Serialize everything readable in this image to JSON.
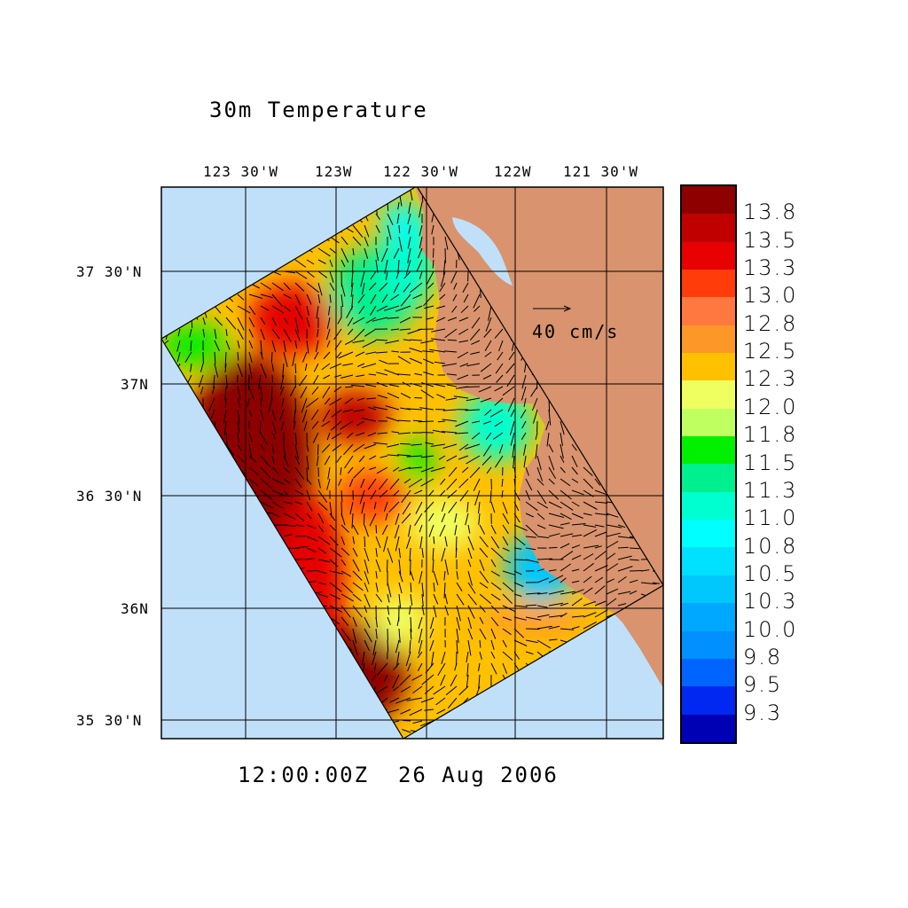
{
  "chart_data": {
    "type": "heatmap",
    "title": "30m Temperature",
    "timestamp": "12:00:00Z  26 Aug 2006",
    "x_ticks": [
      "123 30'W",
      "123W",
      "122 30'W",
      "122W",
      "121 30'W"
    ],
    "y_ticks": [
      "37 30'N",
      "37N",
      "36 30'N",
      "36N",
      "35 30'N"
    ],
    "xlim": [
      -123.97,
      -121.19
    ],
    "ylim": [
      35.42,
      37.88
    ],
    "vector_reference": "40 cm/s",
    "colorbar": {
      "labels": [
        "13.8",
        "13.5",
        "13.3",
        "13.0",
        "12.8",
        "12.5",
        "12.3",
        "12.0",
        "11.8",
        "11.5",
        "11.3",
        "11.0",
        "10.8",
        "10.5",
        "10.3",
        "10.0",
        "9.8",
        "9.5",
        "9.3"
      ],
      "colors": [
        "#8e0000",
        "#c00000",
        "#e60000",
        "#ff3c0a",
        "#ff7840",
        "#ff9628",
        "#ffc000",
        "#f0ff60",
        "#c0ff60",
        "#00f000",
        "#00f090",
        "#00ffd0",
        "#00ffff",
        "#00e0ff",
        "#00c8ff",
        "#00a8ff",
        "#0090ff",
        "#0064ff",
        "#0028f0",
        "#0000b4"
      ]
    },
    "colors": {
      "ocean": "#c0e0fa",
      "land": "#d9936e"
    }
  }
}
